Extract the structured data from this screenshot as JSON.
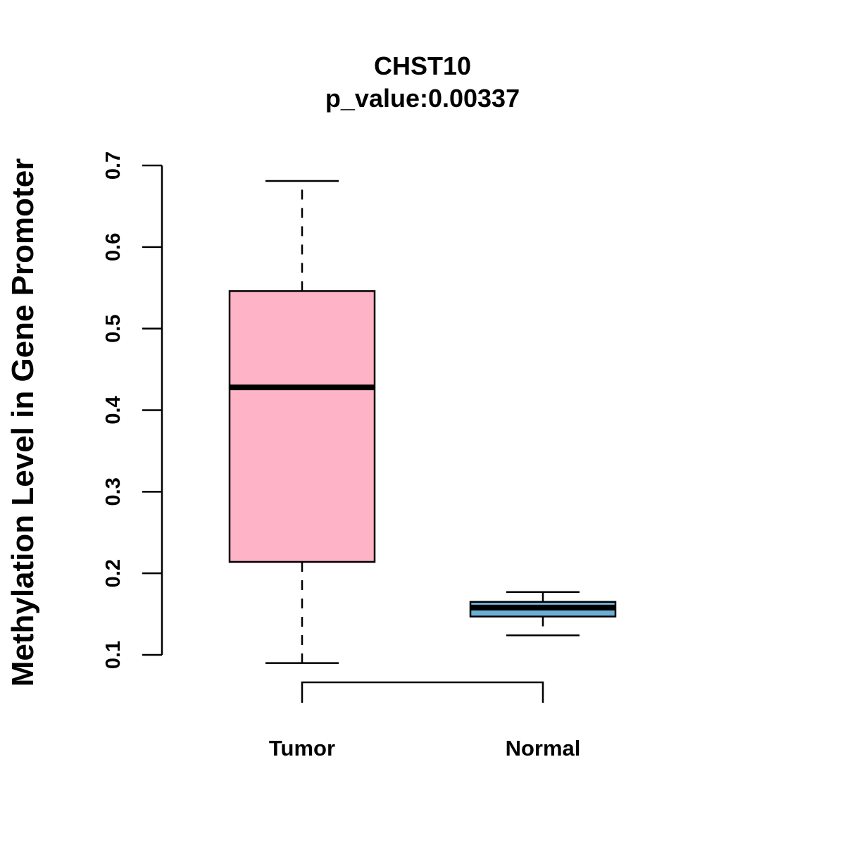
{
  "chart_data": {
    "type": "boxplot",
    "title": "CHST10",
    "subtitle": "p_value:0.00337",
    "xlabel": "",
    "ylabel": "Methylation Level in Gene Promoter",
    "ylim": [
      0.1,
      0.7
    ],
    "yticks": [
      0.1,
      0.2,
      0.3,
      0.4,
      0.5,
      0.6,
      0.7
    ],
    "ytick_labels": [
      "0.1",
      "0.2",
      "0.3",
      "0.4",
      "0.5",
      "0.6",
      "0.7"
    ],
    "categories": [
      "Tumor",
      "Normal"
    ],
    "boxes": [
      {
        "category": "Tumor",
        "min": 0.09,
        "q1": 0.214,
        "median": 0.428,
        "q3": 0.546,
        "max": 0.681,
        "fill": "#ffb3c6"
      },
      {
        "category": "Normal",
        "min": 0.124,
        "q1": 0.147,
        "median": 0.158,
        "q3": 0.165,
        "max": 0.177,
        "fill": "#6baed6"
      }
    ],
    "grid": false,
    "legend": "none",
    "comparison_bracket": true
  }
}
